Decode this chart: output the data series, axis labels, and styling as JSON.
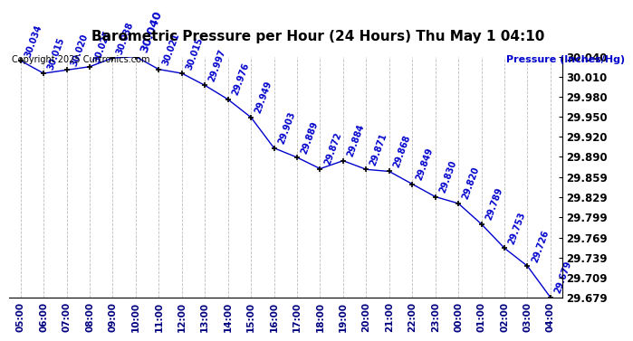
{
  "title": "Barometric Pressure per Hour (24 Hours) Thu May 1 04:10",
  "ylabel_right": "Pressure (Inches/Hg)",
  "copyright": "Copyright 2025 Curtronics.com",
  "hours": [
    "05:00",
    "06:00",
    "07:00",
    "08:00",
    "09:00",
    "10:00",
    "11:00",
    "12:00",
    "13:00",
    "14:00",
    "15:00",
    "16:00",
    "17:00",
    "18:00",
    "19:00",
    "20:00",
    "21:00",
    "22:00",
    "23:00",
    "00:00",
    "01:00",
    "02:00",
    "03:00",
    "04:00"
  ],
  "values": [
    30.034,
    30.015,
    30.02,
    30.025,
    30.038,
    30.04,
    30.021,
    30.015,
    29.997,
    29.976,
    29.949,
    29.903,
    29.889,
    29.872,
    29.884,
    29.871,
    29.868,
    29.849,
    29.83,
    29.82,
    29.789,
    29.753,
    29.726,
    29.679
  ],
  "line_color": "#0000cc",
  "marker_color": "#000000",
  "grid_color": "#bbbbbb",
  "bg_color": "#ffffff",
  "title_color": "#000000",
  "data_label_color": "#0000cc",
  "right_axis_label_color": "#0000cc",
  "right_tick_color": "#000000",
  "copyright_color": "#000000",
  "yticks": [
    30.04,
    30.01,
    29.98,
    29.95,
    29.92,
    29.89,
    29.859,
    29.829,
    29.799,
    29.769,
    29.739,
    29.709,
    29.679
  ]
}
